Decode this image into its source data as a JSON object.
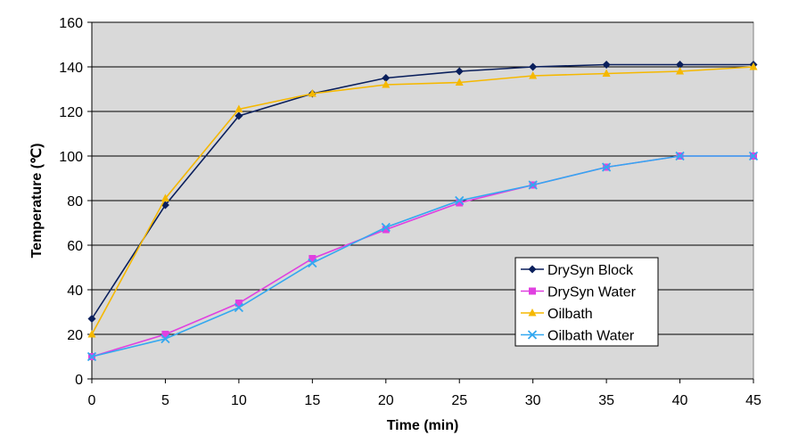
{
  "chart_data": {
    "type": "line",
    "title": "",
    "xlabel": "Time (min)",
    "ylabel": "Temperature (℃)",
    "x": [
      0,
      5,
      10,
      15,
      20,
      25,
      30,
      35,
      40,
      45
    ],
    "xlim": [
      0,
      45
    ],
    "ylim": [
      0,
      160
    ],
    "xticks": [
      "0",
      "5",
      "10",
      "15",
      "20",
      "25",
      "30",
      "35",
      "40",
      "45"
    ],
    "yticks": [
      "0",
      "20",
      "40",
      "60",
      "80",
      "100",
      "120",
      "140",
      "160"
    ],
    "grid": "horizontal",
    "legend_position": "lower-right",
    "plot_background": "#d9d9d9",
    "series": [
      {
        "name": "DrySyn Block",
        "color": "#0a1f5c",
        "marker": "diamond",
        "values": [
          27,
          78,
          118,
          128,
          135,
          138,
          140,
          141,
          141,
          141
        ]
      },
      {
        "name": "DrySyn Water",
        "color": "#e040e0",
        "marker": "square",
        "values": [
          10,
          20,
          34,
          54,
          67,
          79,
          87,
          95,
          100,
          100
        ]
      },
      {
        "name": "Oilbath",
        "color": "#f5b800",
        "marker": "triangle",
        "values": [
          20,
          81,
          121,
          128,
          132,
          133,
          136,
          137,
          138,
          140
        ]
      },
      {
        "name": "Oilbath Water",
        "color": "#33a8f0",
        "marker": "x",
        "values": [
          10,
          18,
          32,
          52,
          68,
          80,
          87,
          95,
          100,
          100
        ]
      }
    ]
  }
}
